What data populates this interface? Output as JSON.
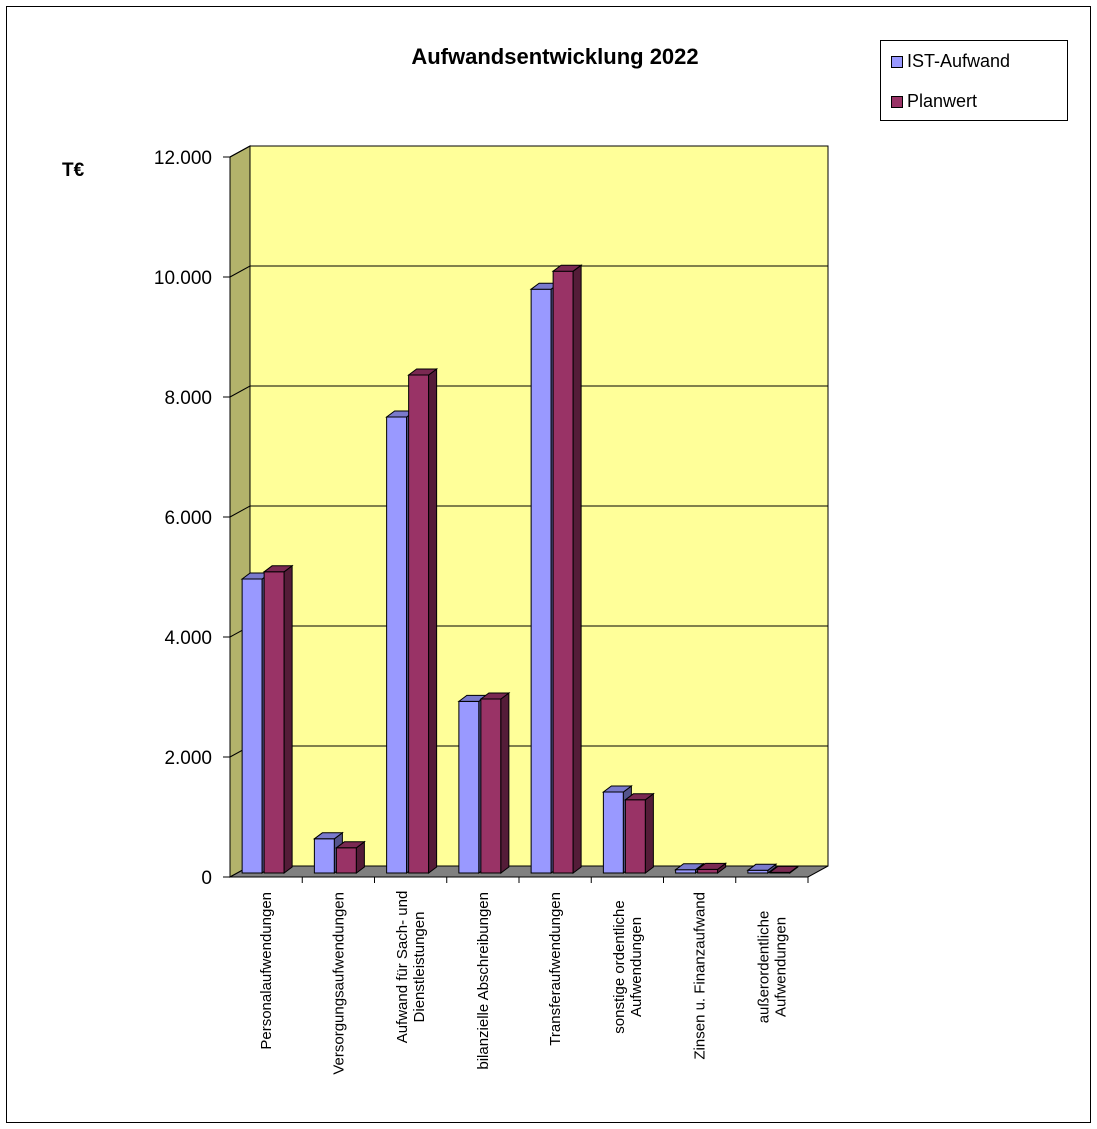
{
  "chart_data": {
    "type": "bar",
    "title": "Aufwandsentwicklung 2022",
    "ylabel": "T€",
    "xlabel": "",
    "ylim": [
      0,
      12000
    ],
    "yticks": [
      "0",
      "2.000",
      "4.000",
      "6.000",
      "8.000",
      "10.000",
      "12.000"
    ],
    "ytick_values": [
      0,
      2000,
      4000,
      6000,
      8000,
      10000,
      12000
    ],
    "grid": true,
    "legend_position": "top-right",
    "categories": [
      [
        "Personalaufwendungen"
      ],
      [
        "Versorgungsaufwendungen"
      ],
      [
        "Aufwand für Sach- und",
        "Dienstleistungen"
      ],
      [
        "bilanzielle Abschreibungen"
      ],
      [
        "Transferaufwendungen"
      ],
      [
        "sonstige ordentliche",
        "Aufwendungen"
      ],
      [
        "Zinsen u. Finanzaufwand"
      ],
      [
        "außerordentliche",
        "Aufwendungen"
      ]
    ],
    "series": [
      {
        "name": "IST-Aufwand",
        "color": "#9999ff",
        "values": [
          4900,
          570,
          7600,
          2860,
          9730,
          1350,
          55,
          45
        ]
      },
      {
        "name": "Planwert",
        "color": "#993366",
        "values": [
          5020,
          420,
          8300,
          2900,
          10030,
          1220,
          60,
          10
        ]
      }
    ],
    "colors": {
      "wall": "#ffff99",
      "side_wall": "#b3b36b",
      "floor": "#808080"
    }
  }
}
